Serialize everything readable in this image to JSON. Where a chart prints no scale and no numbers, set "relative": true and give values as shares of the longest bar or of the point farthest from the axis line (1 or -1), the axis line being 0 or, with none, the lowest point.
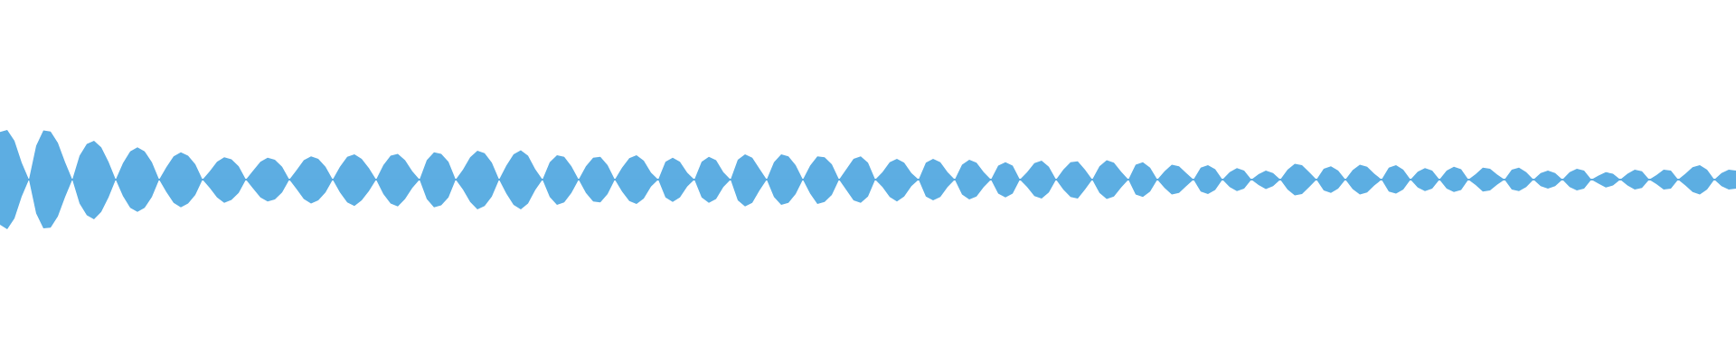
{
  "chart_data": {
    "type": "area",
    "relative": true,
    "tick_labels": false,
    "ref_lines": [
      {
        "axis": "y",
        "value": 0,
        "color": "#5dade2"
      }
    ],
    "categories": [
      null,
      null,
      null,
      null,
      null,
      null,
      null,
      null,
      null,
      null,
      null,
      null,
      null,
      null,
      null,
      null,
      null,
      null,
      null,
      null,
      null,
      null,
      null,
      null,
      null,
      null,
      null,
      null,
      null,
      null,
      null,
      null,
      null,
      null,
      null,
      null,
      null,
      null,
      null,
      null,
      null,
      null,
      null,
      null,
      null,
      null,
      null,
      null,
      null,
      null,
      null,
      null,
      null,
      null,
      null,
      null,
      null,
      null,
      null,
      null,
      null,
      null,
      null,
      null,
      null,
      null,
      null,
      null,
      null,
      null,
      null,
      null,
      null,
      null,
      null,
      null,
      null,
      null,
      null,
      null,
      null,
      null,
      null,
      null,
      null,
      null,
      null,
      null,
      null,
      null,
      null,
      null,
      null,
      null,
      null,
      null,
      null,
      null,
      null,
      null,
      null,
      null,
      null,
      null,
      null,
      null,
      null,
      null,
      null,
      null,
      null,
      null,
      null,
      null,
      null,
      null,
      null,
      null,
      null,
      null,
      null,
      null,
      null,
      null,
      null,
      null,
      null,
      null,
      null,
      null,
      null,
      null,
      null,
      null,
      null,
      null,
      null,
      null,
      null,
      null,
      null,
      null,
      null,
      null,
      null,
      null,
      null,
      null,
      null,
      null,
      null,
      null,
      null,
      null,
      null,
      null,
      null,
      null,
      null,
      null,
      null,
      null,
      null,
      null,
      null,
      null,
      null,
      null,
      null,
      null,
      null,
      null,
      null,
      null,
      null,
      null,
      null,
      null,
      null,
      null,
      null,
      null,
      null,
      null,
      null,
      null,
      null,
      null,
      null,
      null,
      null,
      null,
      null,
      null,
      null,
      null,
      null,
      null,
      null,
      null,
      null,
      null,
      null,
      null,
      null,
      null,
      null,
      null,
      null,
      null,
      null,
      null,
      null,
      null,
      null,
      null,
      null,
      null,
      null,
      null,
      null,
      null,
      null,
      null,
      null,
      null,
      null,
      null,
      null,
      null,
      null,
      null,
      null,
      null,
      null,
      null,
      null,
      null,
      null,
      null,
      null
    ],
    "series": [
      {
        "color": "#5dade2",
        "values": [
          0.96,
          1.0,
          0.78,
          0.34,
          0,
          0.68,
          0.99,
          0.97,
          0.74,
          0.35,
          0,
          0.48,
          0.72,
          0.78,
          0.65,
          0.36,
          0,
          0.33,
          0.57,
          0.65,
          0.57,
          0.35,
          0,
          0.25,
          0.47,
          0.55,
          0.48,
          0.31,
          0,
          0.17,
          0.36,
          0.45,
          0.41,
          0.27,
          0,
          0.18,
          0.36,
          0.44,
          0.4,
          0.26,
          0,
          0.19,
          0.39,
          0.47,
          0.42,
          0.26,
          0,
          0.26,
          0.46,
          0.51,
          0.42,
          0.23,
          0,
          0.29,
          0.48,
          0.52,
          0.39,
          0.17,
          0,
          0.39,
          0.55,
          0.52,
          0.36,
          0,
          0.2,
          0.45,
          0.58,
          0.53,
          0.34,
          0,
          0.28,
          0.51,
          0.59,
          0.48,
          0.21,
          0,
          0.35,
          0.49,
          0.46,
          0.27,
          0,
          0.27,
          0.44,
          0.46,
          0.29,
          0,
          0.24,
          0.43,
          0.49,
          0.38,
          0.14,
          0,
          0.36,
          0.44,
          0.36,
          0.14,
          0,
          0.36,
          0.46,
          0.39,
          0.15,
          0,
          0.4,
          0.51,
          0.44,
          0.22,
          0,
          0.35,
          0.51,
          0.47,
          0.29,
          0,
          0.28,
          0.47,
          0.45,
          0.31,
          0,
          0.21,
          0.42,
          0.47,
          0.34,
          0,
          0.15,
          0.35,
          0.42,
          0.34,
          0.13,
          0,
          0.34,
          0.42,
          0.35,
          0.15,
          0,
          0.3,
          0.4,
          0.34,
          0.15,
          0,
          0.28,
          0.35,
          0.28,
          0,
          0.15,
          0.33,
          0.38,
          0.26,
          0,
          0.2,
          0.35,
          0.37,
          0.2,
          0,
          0.27,
          0.39,
          0.34,
          0.16,
          0,
          0.3,
          0.35,
          0.24,
          0,
          0.17,
          0.3,
          0.27,
          0.13,
          0,
          0.24,
          0.29,
          0.21,
          0,
          0.15,
          0.23,
          0.18,
          0,
          0.11,
          0.18,
          0.13,
          0,
          0.2,
          0.32,
          0.29,
          0.15,
          0,
          0.22,
          0.27,
          0.18,
          0,
          0.19,
          0.3,
          0.26,
          0.12,
          0,
          0.24,
          0.29,
          0.2,
          0,
          0.16,
          0.23,
          0.18,
          0,
          0.18,
          0.26,
          0.21,
          0,
          0.11,
          0.24,
          0.22,
          0.1,
          0,
          0.2,
          0.24,
          0.15,
          0,
          0.13,
          0.18,
          0.13,
          0,
          0.15,
          0.22,
          0.18,
          0,
          0.08,
          0.15,
          0.12,
          0,
          0.12,
          0.2,
          0.17,
          0,
          0.09,
          0.2,
          0.18,
          0,
          0.12,
          0.25,
          0.29,
          0.2,
          0,
          0.13,
          0.2,
          0.18
        ]
      },
      {
        "color": "#5caee2",
        "values": [
          -0.91,
          -1.0,
          -0.78,
          -0.34,
          0,
          -0.68,
          -0.98,
          -0.97,
          -0.74,
          -0.35,
          0,
          -0.48,
          -0.72,
          -0.8,
          -0.65,
          -0.36,
          0,
          -0.33,
          -0.57,
          -0.65,
          -0.57,
          -0.35,
          0,
          -0.25,
          -0.47,
          -0.56,
          -0.48,
          -0.31,
          0,
          -0.17,
          -0.36,
          -0.47,
          -0.41,
          -0.27,
          0,
          -0.18,
          -0.36,
          -0.44,
          -0.4,
          -0.26,
          0,
          -0.19,
          -0.39,
          -0.48,
          -0.42,
          -0.26,
          0,
          -0.26,
          -0.46,
          -0.53,
          -0.42,
          -0.23,
          0,
          -0.29,
          -0.48,
          -0.54,
          -0.39,
          -0.17,
          0,
          -0.39,
          -0.56,
          -0.52,
          -0.36,
          0,
          -0.2,
          -0.45,
          -0.6,
          -0.53,
          -0.34,
          0,
          -0.28,
          -0.51,
          -0.6,
          -0.48,
          -0.21,
          0,
          -0.35,
          -0.51,
          -0.46,
          -0.27,
          0,
          -0.27,
          -0.44,
          -0.46,
          -0.29,
          0,
          -0.24,
          -0.43,
          -0.49,
          -0.38,
          -0.14,
          0,
          -0.36,
          -0.45,
          -0.36,
          -0.14,
          0,
          -0.36,
          -0.47,
          -0.39,
          -0.15,
          0,
          -0.42,
          -0.54,
          -0.47,
          -0.22,
          0,
          -0.35,
          -0.51,
          -0.47,
          -0.29,
          0,
          -0.28,
          -0.49,
          -0.45,
          -0.31,
          0,
          -0.21,
          -0.42,
          -0.47,
          -0.34,
          0,
          -0.15,
          -0.35,
          -0.44,
          -0.34,
          -0.13,
          0,
          -0.34,
          -0.42,
          -0.35,
          -0.15,
          0,
          -0.3,
          -0.4,
          -0.34,
          -0.15,
          0,
          -0.28,
          -0.36,
          -0.28,
          0,
          -0.15,
          -0.33,
          -0.38,
          -0.26,
          0,
          -0.2,
          -0.35,
          -0.38,
          -0.2,
          0,
          -0.27,
          -0.39,
          -0.34,
          -0.16,
          0,
          -0.3,
          -0.35,
          -0.24,
          0,
          -0.17,
          -0.3,
          -0.27,
          -0.13,
          0,
          -0.24,
          -0.29,
          -0.21,
          0,
          -0.15,
          -0.23,
          -0.18,
          0,
          -0.11,
          -0.19,
          -0.13,
          0,
          -0.2,
          -0.32,
          -0.29,
          -0.15,
          0,
          -0.22,
          -0.27,
          -0.18,
          0,
          -0.19,
          -0.3,
          -0.26,
          -0.12,
          0,
          -0.24,
          -0.28,
          -0.2,
          0,
          -0.16,
          -0.23,
          -0.18,
          0,
          -0.18,
          -0.25,
          -0.21,
          0,
          -0.11,
          -0.24,
          -0.22,
          -0.1,
          0,
          -0.2,
          -0.23,
          -0.15,
          0,
          -0.13,
          -0.18,
          -0.13,
          0,
          -0.15,
          -0.22,
          -0.18,
          0,
          -0.08,
          -0.16,
          -0.12,
          0,
          -0.12,
          -0.2,
          -0.17,
          0,
          -0.09,
          -0.2,
          -0.18,
          0,
          -0.12,
          -0.25,
          -0.3,
          -0.2,
          0,
          -0.13,
          -0.2,
          -0.18
        ]
      }
    ]
  }
}
